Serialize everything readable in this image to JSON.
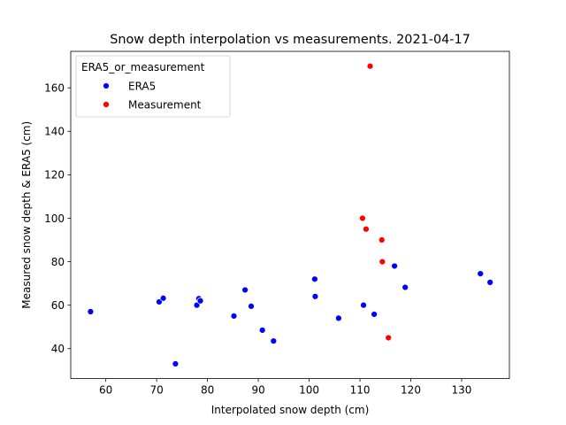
{
  "chart_data": {
    "type": "scatter",
    "title": "Snow depth interpolation vs measurements. 2021-04-17",
    "xlabel": "Interpolated snow depth (cm)",
    "ylabel": "Measured snow depth & ERA5 (cm)",
    "xlim": [
      53.1,
      139.4
    ],
    "ylim": [
      26.2,
      176.8
    ],
    "xticks": [
      60,
      70,
      80,
      90,
      100,
      110,
      120,
      130
    ],
    "yticks": [
      40,
      60,
      80,
      100,
      120,
      140,
      160
    ],
    "grid": false,
    "legend": {
      "title": "ERA5_or_measurement",
      "placement": "upper-left",
      "entries": [
        "ERA5",
        "Measurement"
      ]
    },
    "series": [
      {
        "name": "ERA5",
        "color": "#0000ff",
        "points": [
          [
            57.0,
            57.0
          ],
          [
            70.5,
            61.5
          ],
          [
            71.3,
            63.2
          ],
          [
            73.7,
            33.0
          ],
          [
            77.9,
            60.0
          ],
          [
            78.3,
            63.0
          ],
          [
            78.6,
            62.0
          ],
          [
            85.2,
            55.0
          ],
          [
            87.4,
            67.0
          ],
          [
            88.6,
            59.5
          ],
          [
            90.8,
            48.5
          ],
          [
            93.0,
            43.5
          ],
          [
            101.1,
            72.0
          ],
          [
            101.2,
            64.0
          ],
          [
            105.8,
            54.0
          ],
          [
            110.7,
            60.0
          ],
          [
            112.8,
            55.8
          ],
          [
            116.8,
            78.0
          ],
          [
            118.9,
            68.2
          ],
          [
            133.7,
            74.5
          ],
          [
            135.6,
            70.5
          ]
        ]
      },
      {
        "name": "Measurement",
        "color": "#ff0000",
        "points": [
          [
            112.0,
            170.0
          ],
          [
            110.5,
            100.0
          ],
          [
            111.2,
            95.0
          ],
          [
            114.3,
            90.0
          ],
          [
            114.4,
            80.0
          ],
          [
            115.6,
            45.0
          ]
        ]
      }
    ]
  }
}
